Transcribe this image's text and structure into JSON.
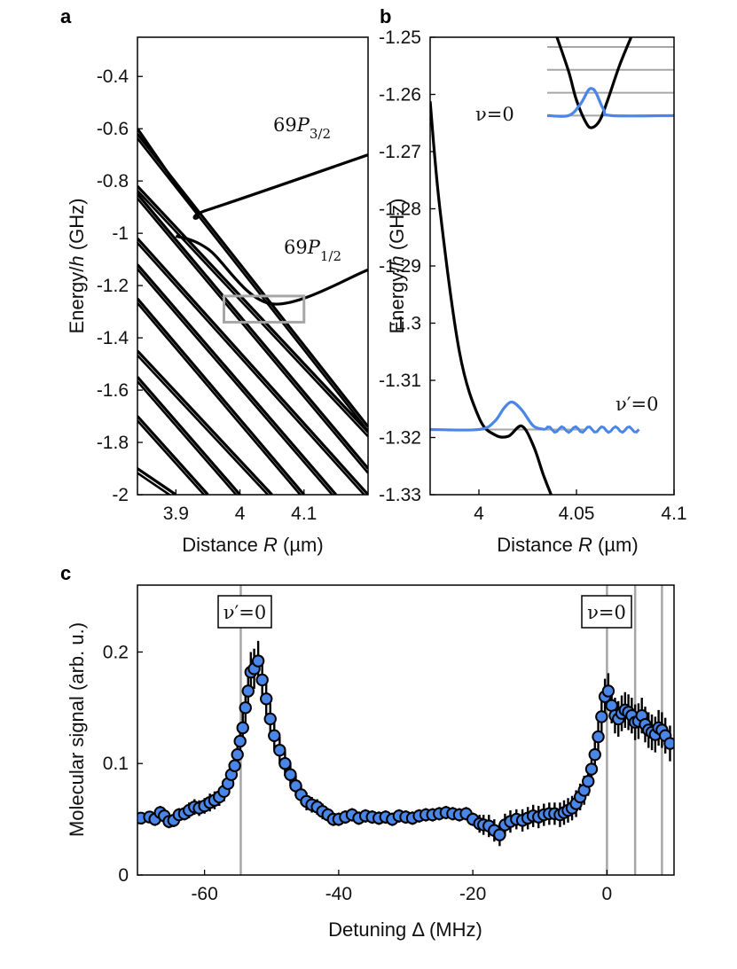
{
  "panel_labels": {
    "a": "a",
    "b": "b",
    "c": "c"
  },
  "colors": {
    "blue": "#4a86e8",
    "black": "#000000",
    "gray": "#a6a6a6"
  },
  "chart_data": [
    {
      "panel": "a",
      "type": "line",
      "xlabel_prefix": "Distance ",
      "xlabel_var": "R",
      "xlabel_suffix": " (µm)",
      "ylabel_prefix": "Energy/",
      "ylabel_var": "h",
      "ylabel_suffix": " (GHz)",
      "xlim": [
        3.84,
        4.2
      ],
      "ylim": [
        -2.0,
        -0.25
      ],
      "xticks": [
        3.9,
        4.0,
        4.1
      ],
      "xtick_labels": [
        "3.9",
        "4",
        "4.1"
      ],
      "yticks": [
        -2.0,
        -1.8,
        -1.6,
        -1.4,
        -1.2,
        -1.0,
        -0.8,
        -0.6,
        -0.4
      ],
      "ytick_labels": [
        "-2",
        "-1.8",
        "-1.6",
        "-1.4",
        "-1.2",
        "-1",
        "-0.8",
        "-0.6",
        "-0.4"
      ],
      "annotations": [
        {
          "prefix": "69",
          "var": "P",
          "sub": "3/2"
        },
        {
          "prefix": "69",
          "var": "P",
          "sub": "1/2"
        }
      ],
      "highlight_box": {
        "x": [
          3.975,
          4.1
        ],
        "y": [
          -1.34,
          -1.24
        ]
      },
      "series": [
        {
          "name": "69P3/2 asymptote",
          "x": [
            3.84,
            3.93,
            3.95,
            4.2
          ],
          "y": [
            -0.6,
            -0.91,
            -0.91,
            -0.7
          ]
        },
        {
          "name": "69P1/2 asymptote",
          "x": [
            3.9,
            3.95,
            4.05,
            4.2
          ],
          "y": [
            -1.01,
            -1.06,
            -1.27,
            -1.14
          ]
        },
        {
          "name": "diabatic 1",
          "x": [
            3.84,
            4.2
          ],
          "y": [
            -0.62,
            -1.74
          ]
        },
        {
          "name": "diabatic 2",
          "x": [
            3.84,
            4.2
          ],
          "y": [
            -0.82,
            -1.76
          ]
        },
        {
          "name": "diabatic 3",
          "x": [
            3.84,
            4.2
          ],
          "y": [
            -0.85,
            -1.9
          ]
        },
        {
          "name": "diabatic 4",
          "x": [
            3.84,
            4.2
          ],
          "y": [
            -1.02,
            -2.0
          ]
        },
        {
          "name": "diabatic 5",
          "x": [
            3.84,
            4.15
          ],
          "y": [
            -1.12,
            -2.0
          ]
        },
        {
          "name": "diabatic 6",
          "x": [
            3.84,
            4.1
          ],
          "y": [
            -1.25,
            -2.0
          ]
        },
        {
          "name": "diabatic 7",
          "x": [
            3.84,
            4.05
          ],
          "y": [
            -1.45,
            -2.0
          ]
        },
        {
          "name": "diabatic 8",
          "x": [
            3.84,
            4.0
          ],
          "y": [
            -1.55,
            -2.0
          ]
        },
        {
          "name": "diabatic 9",
          "x": [
            3.84,
            3.95
          ],
          "y": [
            -1.7,
            -2.0
          ]
        },
        {
          "name": "diabatic 10",
          "x": [
            3.84,
            3.9
          ],
          "y": [
            -1.9,
            -2.0
          ]
        }
      ]
    },
    {
      "panel": "b",
      "type": "line",
      "xlabel_prefix": "Distance ",
      "xlabel_var": "R",
      "xlabel_suffix": " (µm)",
      "ylabel_prefix": "Energy/",
      "ylabel_var": "h",
      "ylabel_suffix": " (GHz)",
      "xlim": [
        3.975,
        4.1
      ],
      "ylim": [
        -1.33,
        -1.25
      ],
      "xticks": [
        4.0,
        4.05,
        4.1
      ],
      "xtick_labels": [
        "4",
        "4.05",
        "4.1"
      ],
      "yticks": [
        -1.33,
        -1.32,
        -1.31,
        -1.3,
        -1.29,
        -1.28,
        -1.27,
        -1.26,
        -1.25
      ],
      "ytick_labels": [
        "-1.33",
        "-1.32",
        "-1.31",
        "-1.3",
        "-1.29",
        "-1.28",
        "-1.27",
        "-1.26",
        "-1.25"
      ],
      "annotations": [
        {
          "label": "ν=0"
        },
        {
          "label": "ν′=0"
        }
      ],
      "levels_upper": [
        -1.2637,
        -1.2597,
        -1.2557,
        -1.2517
      ],
      "levels_lower": [
        -1.3186
      ],
      "series": [
        {
          "name": "upper well",
          "x": [
            4.04,
            4.046,
            4.05,
            4.055,
            4.058,
            4.062,
            4.066,
            4.072,
            4.078
          ],
          "y": [
            -1.25,
            -1.256,
            -1.261,
            -1.265,
            -1.2658,
            -1.2645,
            -1.261,
            -1.255,
            -1.25
          ]
        },
        {
          "name": "lower well",
          "x": [
            3.975,
            3.98,
            3.99,
            4.0,
            4.008,
            4.015,
            4.022,
            4.028,
            4.033,
            4.037
          ],
          "y": [
            -1.2612,
            -1.28,
            -1.305,
            -1.3165,
            -1.3195,
            -1.3198,
            -1.318,
            -1.3215,
            -1.3265,
            -1.33
          ]
        },
        {
          "name": "ν=0 wavefunction",
          "x": [
            4.046,
            4.052,
            4.056,
            4.058,
            4.06,
            4.064,
            4.068
          ],
          "y": [
            -1.2637,
            -1.2617,
            -1.2593,
            -1.259,
            -1.2597,
            -1.2627,
            -1.2637
          ]
        },
        {
          "name": "ν′=0 wavefunction",
          "x": [
            4.0,
            4.008,
            4.013,
            4.017,
            4.022,
            4.028,
            4.034
          ],
          "y": [
            -1.3186,
            -1.3172,
            -1.3148,
            -1.3138,
            -1.3152,
            -1.318,
            -1.3186
          ]
        }
      ]
    },
    {
      "panel": "c",
      "type": "scatter",
      "xlabel_prefix": "Detuning ",
      "xlabel_sym": "Δ",
      "xlabel_suffix": " (MHz)",
      "ylabel": "Molecular signal (arb. u.)",
      "xlim": [
        -70,
        10
      ],
      "ylim": [
        0,
        0.26
      ],
      "xticks": [
        -60,
        -40,
        -20,
        0
      ],
      "xtick_labels": [
        "-60",
        "-40",
        "-20",
        "0"
      ],
      "yticks": [
        0,
        0.1,
        0.2
      ],
      "ytick_labels": [
        "0",
        "0.1",
        "0.2"
      ],
      "vlines": [
        -54.6,
        0,
        4.2,
        8.2
      ],
      "annotations": [
        {
          "label": "ν′=0",
          "x": -54.6
        },
        {
          "label": "ν=0",
          "x": 0
        }
      ],
      "x": [
        -69.5,
        -68.2,
        -67.4,
        -66.6,
        -66.0,
        -65.3,
        -64.6,
        -63.8,
        -63.0,
        -62.3,
        -61.5,
        -60.8,
        -60.0,
        -59.2,
        -58.5,
        -57.8,
        -57.1,
        -56.5,
        -56.0,
        -55.5,
        -55.1,
        -54.7,
        -54.3,
        -53.9,
        -53.5,
        -53.1,
        -52.6,
        -52.0,
        -51.4,
        -50.8,
        -50.2,
        -49.6,
        -48.8,
        -48.0,
        -47.2,
        -46.4,
        -45.6,
        -44.8,
        -44.0,
        -43.2,
        -42.4,
        -41.6,
        -40.8,
        -40.0,
        -39.0,
        -38.0,
        -37.0,
        -36.0,
        -35.0,
        -34.0,
        -33.0,
        -32.0,
        -31.0,
        -30.0,
        -29.0,
        -28.0,
        -27.0,
        -26.0,
        -25.0,
        -24.0,
        -23.0,
        -22.0,
        -21.0,
        -20.0,
        -19.0,
        -18.4,
        -17.6,
        -16.8,
        -16.0,
        -15.2,
        -14.4,
        -13.5,
        -12.6,
        -11.8,
        -11.0,
        -10.2,
        -9.4,
        -8.6,
        -7.8,
        -7.0,
        -6.4,
        -5.8,
        -5.2,
        -4.6,
        -4.0,
        -3.4,
        -2.8,
        -2.3,
        -1.8,
        -1.3,
        -0.8,
        -0.3,
        0.2,
        0.7,
        1.2,
        1.7,
        2.2,
        2.7,
        3.2,
        3.7,
        4.2,
        4.7,
        5.2,
        5.7,
        6.2,
        6.7,
        7.2,
        7.7,
        8.2,
        8.7,
        9.4
      ],
      "values": [
        0.051,
        0.052,
        0.05,
        0.056,
        0.053,
        0.048,
        0.049,
        0.054,
        0.055,
        0.058,
        0.061,
        0.06,
        0.062,
        0.065,
        0.067,
        0.07,
        0.075,
        0.082,
        0.09,
        0.098,
        0.108,
        0.12,
        0.132,
        0.15,
        0.165,
        0.182,
        0.185,
        0.192,
        0.175,
        0.158,
        0.14,
        0.125,
        0.112,
        0.1,
        0.09,
        0.08,
        0.072,
        0.066,
        0.063,
        0.061,
        0.057,
        0.054,
        0.05,
        0.05,
        0.052,
        0.054,
        0.051,
        0.053,
        0.052,
        0.051,
        0.052,
        0.05,
        0.053,
        0.052,
        0.051,
        0.053,
        0.054,
        0.054,
        0.055,
        0.056,
        0.055,
        0.054,
        0.055,
        0.05,
        0.046,
        0.045,
        0.044,
        0.04,
        0.036,
        0.045,
        0.048,
        0.05,
        0.049,
        0.051,
        0.053,
        0.052,
        0.054,
        0.055,
        0.055,
        0.054,
        0.056,
        0.058,
        0.06,
        0.064,
        0.07,
        0.076,
        0.084,
        0.095,
        0.108,
        0.124,
        0.142,
        0.16,
        0.165,
        0.152,
        0.143,
        0.14,
        0.145,
        0.148,
        0.146,
        0.143,
        0.137,
        0.138,
        0.143,
        0.135,
        0.13,
        0.128,
        0.126,
        0.132,
        0.13,
        0.125,
        0.118
      ],
      "errors": [
        0.005,
        0.005,
        0.006,
        0.006,
        0.006,
        0.006,
        0.006,
        0.006,
        0.006,
        0.007,
        0.007,
        0.007,
        0.007,
        0.008,
        0.008,
        0.008,
        0.009,
        0.01,
        0.011,
        0.012,
        0.013,
        0.014,
        0.015,
        0.016,
        0.018,
        0.018,
        0.018,
        0.018,
        0.016,
        0.015,
        0.014,
        0.013,
        0.012,
        0.011,
        0.01,
        0.009,
        0.008,
        0.008,
        0.007,
        0.007,
        0.007,
        0.006,
        0.006,
        0.006,
        0.006,
        0.006,
        0.006,
        0.006,
        0.006,
        0.006,
        0.006,
        0.006,
        0.006,
        0.006,
        0.006,
        0.006,
        0.006,
        0.006,
        0.006,
        0.006,
        0.006,
        0.006,
        0.006,
        0.006,
        0.008,
        0.009,
        0.01,
        0.01,
        0.01,
        0.01,
        0.01,
        0.009,
        0.01,
        0.01,
        0.01,
        0.01,
        0.01,
        0.01,
        0.01,
        0.011,
        0.011,
        0.011,
        0.011,
        0.012,
        0.012,
        0.013,
        0.013,
        0.014,
        0.015,
        0.016,
        0.016,
        0.016,
        0.016,
        0.016,
        0.016,
        0.016,
        0.016,
        0.016,
        0.016,
        0.016,
        0.016,
        0.016,
        0.016,
        0.016,
        0.016,
        0.016,
        0.016,
        0.016,
        0.016,
        0.016,
        0.016
      ]
    }
  ]
}
